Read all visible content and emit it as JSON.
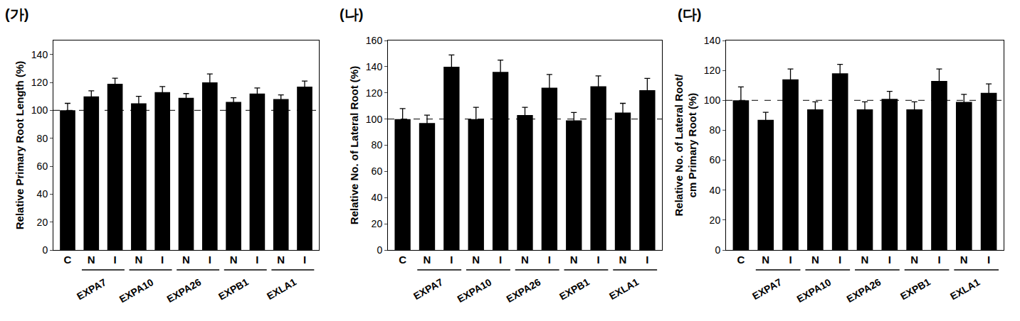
{
  "chart_data": [
    {
      "type": "bar",
      "panel": "(가)",
      "y_label": "Relative Primary Root Length (%)",
      "categories": [
        "C",
        "N",
        "I",
        "N",
        "I",
        "N",
        "I",
        "N",
        "I",
        "N",
        "I"
      ],
      "groups": [
        null,
        "EXPA7",
        "EXPA7",
        "EXPA10",
        "EXPA10",
        "EXPA26",
        "EXPA26",
        "EXPB1",
        "EXPB1",
        "EXLA1",
        "EXLA1"
      ],
      "values": [
        100,
        110,
        119,
        105,
        113,
        109,
        120,
        106,
        112,
        108,
        117
      ],
      "errors": [
        5,
        4,
        4,
        5,
        4,
        3,
        6,
        3,
        4,
        3,
        4
      ],
      "color": "#000000",
      "reference_line": 100,
      "ylim": [
        0,
        150
      ],
      "yticks": [
        0,
        20,
        40,
        60,
        80,
        100,
        120,
        140
      ]
    },
    {
      "type": "bar",
      "panel": "(나)",
      "y_label": "Relative No. of Lateral Root (%)",
      "categories": [
        "C",
        "N",
        "I",
        "N",
        "I",
        "N",
        "I",
        "N",
        "I",
        "N",
        "I"
      ],
      "groups": [
        null,
        "EXPA7",
        "EXPA7",
        "EXPA10",
        "EXPA10",
        "EXPA26",
        "EXPA26",
        "EXPB1",
        "EXPB1",
        "EXLA1",
        "EXLA1"
      ],
      "values": [
        100,
        97,
        140,
        100,
        136,
        103,
        124,
        99,
        125,
        105,
        122
      ],
      "errors": [
        8,
        6,
        9,
        9,
        9,
        6,
        10,
        6,
        8,
        7,
        9
      ],
      "color": "#000000",
      "reference_line": 100,
      "ylim": [
        0,
        160
      ],
      "yticks": [
        0,
        20,
        40,
        60,
        80,
        100,
        120,
        140,
        160
      ]
    },
    {
      "type": "bar",
      "panel": "(다)",
      "y_label": "Relative No. of Lateral Root/\ncm Primary Root (%)",
      "categories": [
        "C",
        "N",
        "I",
        "N",
        "I",
        "N",
        "I",
        "N",
        "I",
        "N",
        "I"
      ],
      "groups": [
        null,
        "EXPA7",
        "EXPA7",
        "EXPA10",
        "EXPA10",
        "EXPA26",
        "EXPA26",
        "EXPB1",
        "EXPB1",
        "EXLA1",
        "EXLA1"
      ],
      "values": [
        100,
        87,
        114,
        94,
        118,
        94,
        101,
        94,
        113,
        99,
        105
      ],
      "errors": [
        9,
        5,
        7,
        5,
        6,
        5,
        5,
        5,
        8,
        5,
        6
      ],
      "color": "#000000",
      "reference_line": 100,
      "ylim": [
        0,
        140
      ],
      "yticks": [
        0,
        20,
        40,
        60,
        80,
        100,
        120,
        140
      ]
    }
  ]
}
